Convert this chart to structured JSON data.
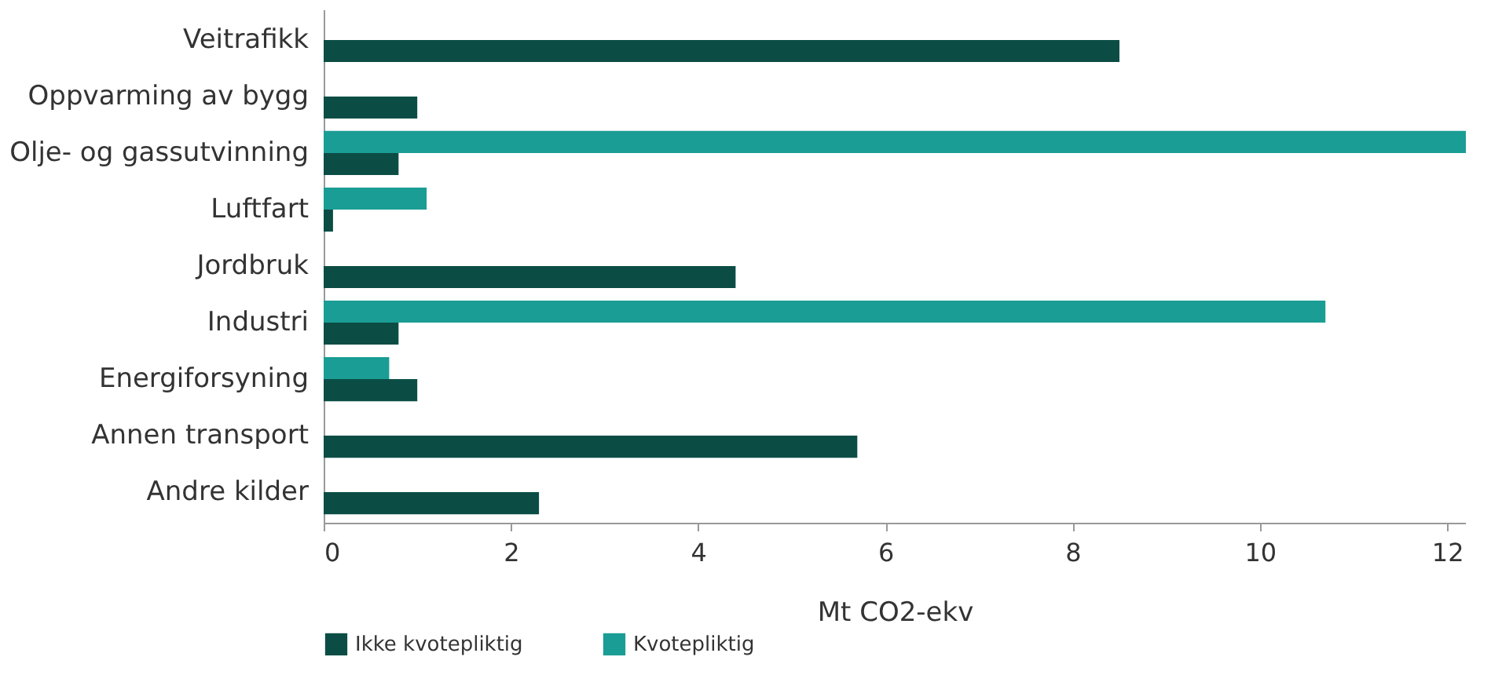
{
  "chart_data": {
    "type": "bar",
    "orientation": "horizontal",
    "xlabel": "Mt CO2-ekv",
    "categories": [
      "Veitrafikk",
      "Oppvarming av bygg",
      "Olje- og gassutvinning",
      "Luftfart",
      "Jordbruk",
      "Industri",
      "Energiforsyning",
      "Annen transport",
      "Andre kilder"
    ],
    "series": [
      {
        "name": "Ikke kvotepliktig",
        "color": "#0b4d45",
        "values": [
          8.5,
          1.0,
          0.8,
          0.1,
          4.4,
          0.8,
          1.0,
          5.7,
          2.3
        ]
      },
      {
        "name": "Kvotepliktig",
        "color": "#1a9d95",
        "values": [
          null,
          null,
          12.2,
          1.1,
          null,
          10.7,
          0.7,
          null,
          null
        ]
      }
    ],
    "xlim": [
      0,
      12.2
    ],
    "xticks": [
      0,
      2,
      4,
      6,
      8,
      10,
      12
    ],
    "grid": false,
    "legend": "bottom"
  }
}
